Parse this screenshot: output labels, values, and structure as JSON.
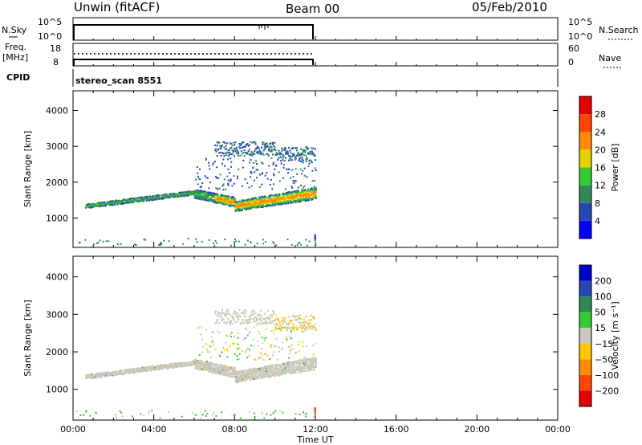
{
  "header": {
    "title": "Unwin (fitACF)",
    "beam": "Beam 00",
    "date": "05/Feb/2010"
  },
  "sky_panel": {
    "label": "N.Sky",
    "left_ticks": [
      "10^5",
      "10^0"
    ],
    "right_ticks": [
      "10^5",
      "10^0"
    ],
    "right_label": "N.Search"
  },
  "freq_panel": {
    "label_line1": "Freq.",
    "label_line2": "[MHz]",
    "left_ticks": [
      "18",
      "8"
    ],
    "right_ticks": [
      "60",
      "0"
    ],
    "right_label": "Nave"
  },
  "cpid": {
    "label": "CPID",
    "value": "stereo_scan 8551"
  },
  "chart_data": [
    {
      "type": "heatmap",
      "title": "",
      "xlabel": "Time UT",
      "ylabel": "Slant Range [km]",
      "xlim_hours": [
        0,
        24
      ],
      "ylim": [
        180,
        4550
      ],
      "x_ticks": [
        "00:00",
        "04:00",
        "08:00",
        "12:00",
        "16:00",
        "20:00",
        "00:00"
      ],
      "y_ticks": [
        1000,
        2000,
        3000,
        4000
      ],
      "data_end_hour": 12,
      "colorbar": {
        "label": "Power [dB]",
        "ticks": [
          "28",
          "24",
          "20",
          "16",
          "12",
          "8",
          "4"
        ],
        "colors": [
          "#0000ff",
          "#2646b4",
          "#2e8b57",
          "#32cd32",
          "#e6d200",
          "#ff8c00",
          "#ff4500",
          "#e60000"
        ],
        "range": [
          0,
          32
        ]
      },
      "echo_bands": [
        {
          "start_hour": 0.5,
          "end_hour": 12,
          "range_km_start": 1300,
          "range_km_end": 1700,
          "peak_db": 22,
          "description_color": "#ff8c00"
        },
        {
          "start_hour": 8.0,
          "end_hour": 12,
          "range_km_start": 2800,
          "range_km_end": 3100,
          "peak_db": 8
        }
      ]
    },
    {
      "type": "heatmap",
      "title": "",
      "xlabel": "Time UT",
      "ylabel": "Slant Range [km]",
      "xlim_hours": [
        0,
        24
      ],
      "ylim": [
        180,
        4550
      ],
      "x_ticks": [
        "00:00",
        "04:00",
        "08:00",
        "12:00",
        "16:00",
        "20:00",
        "00:00"
      ],
      "y_ticks": [
        1000,
        2000,
        3000,
        4000
      ],
      "data_end_hour": 12,
      "colorbar": {
        "label": "Velocity [m s⁻¹]",
        "ticks": [
          "200",
          "100",
          "50",
          "15",
          "−15",
          "−50",
          "−100",
          "−200"
        ],
        "colors": [
          "#e60000",
          "#ff4500",
          "#ff8c00",
          "#ffc800",
          "#c8c8c0",
          "#32cd32",
          "#2e8b57",
          "#2646b4",
          "#0000cc"
        ]
      }
    }
  ],
  "xaxis_label": "Time UT",
  "colors": {
    "ground_grey": "#c8c8c0",
    "frame": "#000000"
  }
}
